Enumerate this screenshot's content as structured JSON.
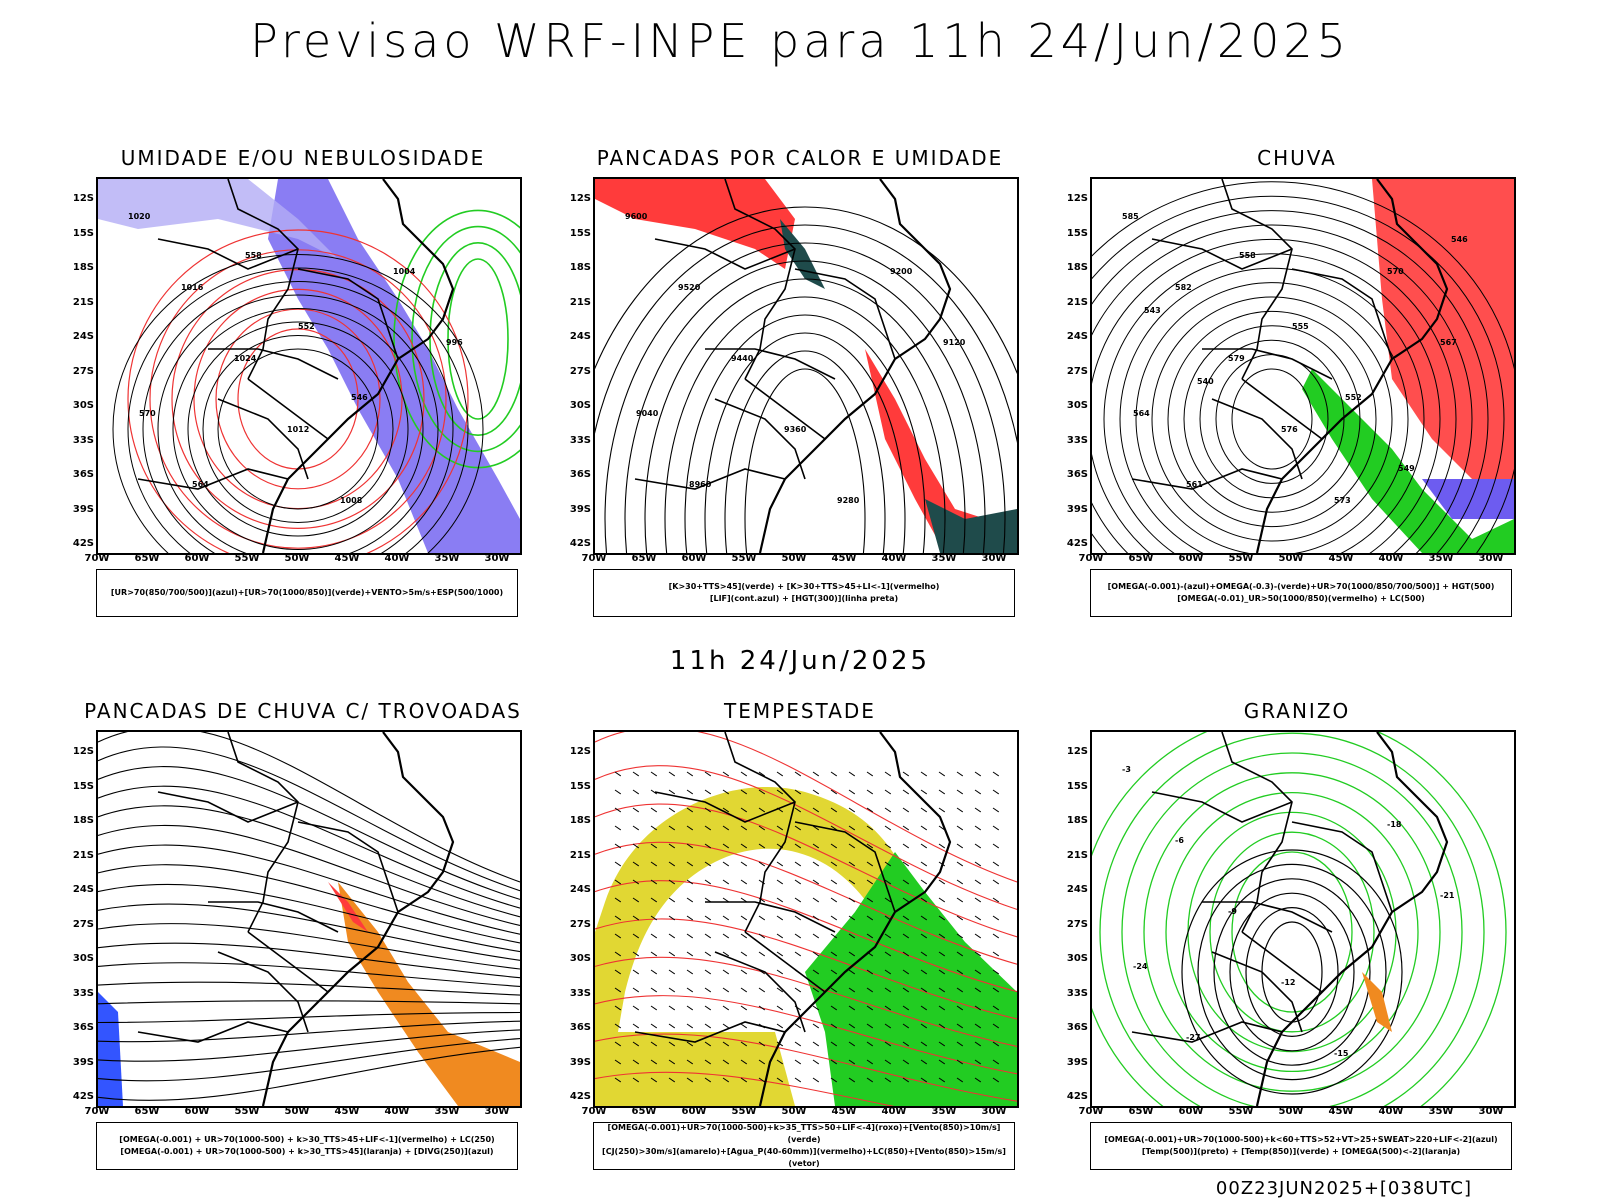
{
  "header": {
    "title": "Previsao WRF-INPE  para 11h 24/Jun/2025"
  },
  "middle": {
    "subtitle": "11h 24/Jun/2025"
  },
  "footer": {
    "run_label": "00Z23JUN2025+[038UTC]"
  },
  "axes": {
    "lat_labels": [
      "12S",
      "15S",
      "18S",
      "21S",
      "24S",
      "27S",
      "30S",
      "33S",
      "36S",
      "39S",
      "42S"
    ],
    "lon_labels": [
      "70W",
      "65W",
      "60W",
      "55W",
      "50W",
      "45W",
      "40W",
      "35W",
      "30W"
    ]
  },
  "colors": {
    "blue": "#6d5cf0",
    "light_blue": "#b3adf5",
    "green": "#22cc22",
    "red": "#ff3b3b",
    "dark_teal": "#1f4b4b",
    "yellow": "#e1d733",
    "orange": "#f08a20"
  },
  "panels": [
    {
      "title": "UMIDADE E/OU NEBULOSIDADE",
      "legend": [
        "[UR>70(850/700/500)](azul)+[UR>70(1000/850)](verde)+VENTO>5m/s+ESP(500/1000)"
      ],
      "contour_labels": [
        "1020",
        "1016",
        "1024",
        "1012",
        "1008",
        "1004",
        "996",
        "570",
        "564",
        "558",
        "552",
        "546"
      ]
    },
    {
      "title": "PANCADAS POR CALOR E UMIDADE",
      "legend": [
        "[K>30+TTS>45](verde) + [K>30+TTS>45+LI<-1](vermelho)",
        "[LIF](cont.azul) + [HGT(300)](linha preta)"
      ],
      "contour_labels": [
        "9600",
        "9520",
        "9440",
        "9360",
        "9280",
        "9200",
        "9120",
        "9040",
        "8960"
      ]
    },
    {
      "title": "CHUVA",
      "legend": [
        "[OMEGA(-0.001)-(azul)+OMEGA(-0.3)-(verde)+UR>70(1000/850/700/500)] + HGT(500)",
        "[OMEGA(-0.01)_UR>50(1000/850)(vermelho) + LC(500)"
      ],
      "contour_labels": [
        "585",
        "582",
        "579",
        "576",
        "573",
        "570",
        "567",
        "564",
        "561",
        "558",
        "555",
        "552",
        "549",
        "546",
        "543",
        "540"
      ]
    },
    {
      "title": "PANCADAS DE CHUVA C/ TROVOADAS",
      "legend": [
        "[OMEGA(-0.001) + UR>70(1000-500) + k>30_TTS>45+LIF<-1](vermelho) + LC(250)",
        "[OMEGA(-0.001) + UR>70(1000-500) + k>30_TTS>45](laranja) + [DIVG(250)](azul)"
      ],
      "contour_labels": []
    },
    {
      "title": "TEMPESTADE",
      "legend": [
        "[OMEGA(-0.001)+UR>70(1000-500)+k>35_TTS>50+LIF<-4](roxo)+[Vento(850)>10m/s](verde)",
        "[CJ(250)>30m/s](amarelo)+[Agua_P(40-60mm)](vermelho)+LC(850)+[Vento(850)>15m/s](vetor)"
      ],
      "contour_labels": []
    },
    {
      "title": "GRANIZO",
      "legend": [
        "[OMEGA(-0.001)+UR>70(1000-500)+k<60+TTS>52+VT>25+SWEAT>220+LIF<-2](azul)",
        "[Temp(500)](preto) + [Temp(850)](verde) + [OMEGA(500)<-2](laranja)"
      ],
      "contour_labels": [
        "-3",
        "-6",
        "-9",
        "-12",
        "-15",
        "-18",
        "-21",
        "-24",
        "-27"
      ]
    }
  ]
}
